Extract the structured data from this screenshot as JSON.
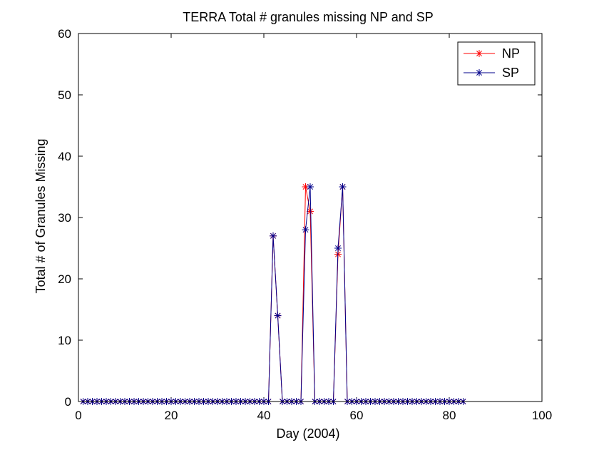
{
  "chart_data": {
    "type": "line",
    "title": "TERRA Total # granules missing NP and SP",
    "xlabel": "Day (2004)",
    "ylabel": "Total # of Granules Missing",
    "xlim": [
      0,
      100
    ],
    "ylim": [
      0,
      60
    ],
    "xticks": [
      0,
      20,
      40,
      60,
      80,
      100
    ],
    "yticks": [
      0,
      10,
      20,
      30,
      40,
      50,
      60
    ],
    "legend_position": "top-right",
    "marker": "asterisk",
    "series": [
      {
        "name": "NP",
        "color": "#ff0000",
        "x": [
          1,
          2,
          3,
          4,
          5,
          6,
          7,
          8,
          9,
          10,
          11,
          12,
          13,
          14,
          15,
          16,
          17,
          18,
          19,
          20,
          21,
          22,
          23,
          24,
          25,
          26,
          27,
          28,
          29,
          30,
          31,
          32,
          33,
          34,
          35,
          36,
          37,
          38,
          39,
          40,
          41,
          42,
          43,
          44,
          45,
          46,
          47,
          48,
          49,
          50,
          51,
          52,
          53,
          54,
          55,
          56,
          57,
          58,
          59,
          60,
          61,
          62,
          63,
          64,
          65,
          66,
          67,
          68,
          69,
          70,
          71,
          72,
          73,
          74,
          75,
          76,
          77,
          78,
          79,
          80,
          81,
          82,
          83
        ],
        "y": [
          0,
          0,
          0,
          0,
          0,
          0,
          0,
          0,
          0,
          0,
          0,
          0,
          0,
          0,
          0,
          0,
          0,
          0,
          0,
          0,
          0,
          0,
          0,
          0,
          0,
          0,
          0,
          0,
          0,
          0,
          0,
          0,
          0,
          0,
          0,
          0,
          0,
          0,
          0,
          0,
          0,
          27,
          14,
          0,
          0,
          0,
          0,
          0,
          35,
          31,
          0,
          0,
          0,
          0,
          0,
          24,
          35,
          0,
          0,
          0,
          0,
          0,
          0,
          0,
          0,
          0,
          0,
          0,
          0,
          0,
          0,
          0,
          0,
          0,
          0,
          0,
          0,
          0,
          0,
          0,
          0,
          0,
          0
        ]
      },
      {
        "name": "SP",
        "color": "#00008b",
        "x": [
          1,
          2,
          3,
          4,
          5,
          6,
          7,
          8,
          9,
          10,
          11,
          12,
          13,
          14,
          15,
          16,
          17,
          18,
          19,
          20,
          21,
          22,
          23,
          24,
          25,
          26,
          27,
          28,
          29,
          30,
          31,
          32,
          33,
          34,
          35,
          36,
          37,
          38,
          39,
          40,
          41,
          42,
          43,
          44,
          45,
          46,
          47,
          48,
          49,
          50,
          51,
          52,
          53,
          54,
          55,
          56,
          57,
          58,
          59,
          60,
          61,
          62,
          63,
          64,
          65,
          66,
          67,
          68,
          69,
          70,
          71,
          72,
          73,
          74,
          75,
          76,
          77,
          78,
          79,
          80,
          81,
          82,
          83
        ],
        "y": [
          0,
          0,
          0,
          0,
          0,
          0,
          0,
          0,
          0,
          0,
          0,
          0,
          0,
          0,
          0,
          0,
          0,
          0,
          0,
          0,
          0,
          0,
          0,
          0,
          0,
          0,
          0,
          0,
          0,
          0,
          0,
          0,
          0,
          0,
          0,
          0,
          0,
          0,
          0,
          0,
          0,
          27,
          14,
          0,
          0,
          0,
          0,
          0,
          28,
          35,
          0,
          0,
          0,
          0,
          0,
          25,
          35,
          0,
          0,
          0,
          0,
          0,
          0,
          0,
          0,
          0,
          0,
          0,
          0,
          0,
          0,
          0,
          0,
          0,
          0,
          0,
          0,
          0,
          0,
          0,
          0,
          0,
          0
        ]
      }
    ]
  }
}
